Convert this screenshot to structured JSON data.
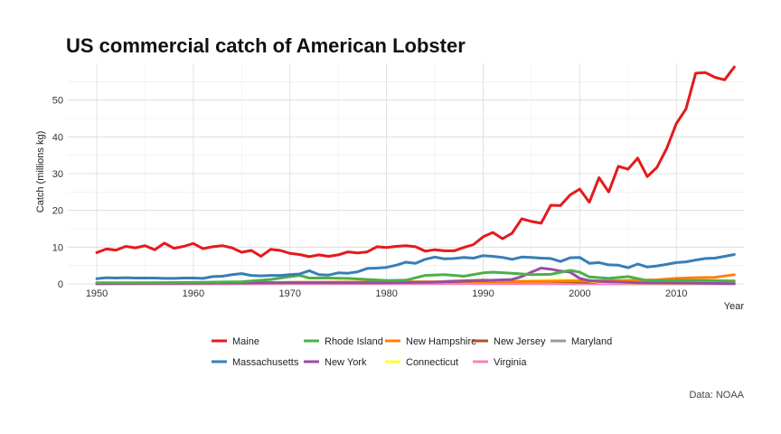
{
  "chart_data": {
    "type": "line",
    "title": "US commercial catch of American Lobster",
    "xlabel": "Year",
    "ylabel": "Catch (millions kg)",
    "caption": "Data: NOAA",
    "xlim": [
      1947,
      2017
    ],
    "ylim": [
      0,
      60
    ],
    "x_ticks": [
      1950,
      1960,
      1970,
      1980,
      1990,
      2000,
      2010
    ],
    "y_ticks": [
      0,
      10,
      20,
      30,
      40,
      50
    ],
    "grid": true,
    "legend_position": "bottom",
    "series": [
      {
        "name": "Maine",
        "color": "#e41a1c",
        "x": [
          1950,
          1951,
          1952,
          1953,
          1954,
          1955,
          1956,
          1957,
          1958,
          1959,
          1960,
          1961,
          1962,
          1963,
          1964,
          1965,
          1966,
          1967,
          1968,
          1969,
          1970,
          1971,
          1972,
          1973,
          1974,
          1975,
          1976,
          1977,
          1978,
          1979,
          1980,
          1981,
          1982,
          1983,
          1984,
          1985,
          1986,
          1987,
          1988,
          1989,
          1990,
          1991,
          1992,
          1993,
          1994,
          1995,
          1996,
          1997,
          1998,
          1999,
          2000,
          2001,
          2002,
          2003,
          2004,
          2005,
          2006,
          2007,
          2008,
          2009,
          2010,
          2011,
          2012,
          2013,
          2014,
          2015,
          2016
        ],
        "values": [
          8.5,
          9.5,
          9.2,
          10.2,
          9.8,
          10.4,
          9.3,
          11.1,
          9.7,
          10.2,
          11.0,
          9.6,
          10.1,
          10.4,
          9.8,
          8.6,
          9.1,
          7.5,
          9.4,
          9.1,
          8.3,
          8.0,
          7.4,
          7.9,
          7.5,
          7.9,
          8.7,
          8.4,
          8.7,
          10.1,
          9.9,
          10.2,
          10.4,
          10.1,
          8.9,
          9.3,
          9.0,
          9.0,
          9.9,
          10.7,
          12.8,
          14.0,
          12.3,
          13.8,
          17.7,
          17.0,
          16.5,
          21.4,
          21.3,
          24.2,
          25.8,
          22.2,
          28.9,
          25.0,
          32.0,
          31.2,
          34.2,
          29.2,
          31.7,
          36.8,
          43.6,
          47.6,
          57.3,
          57.5,
          56.2,
          55.5,
          59.0
        ]
      },
      {
        "name": "Massachusetts",
        "color": "#377eb8",
        "x": [
          1950,
          1951,
          1952,
          1953,
          1954,
          1955,
          1956,
          1957,
          1958,
          1959,
          1960,
          1961,
          1962,
          1963,
          1964,
          1965,
          1966,
          1967,
          1968,
          1969,
          1970,
          1971,
          1972,
          1973,
          1974,
          1975,
          1976,
          1977,
          1978,
          1979,
          1980,
          1981,
          1982,
          1983,
          1984,
          1985,
          1986,
          1987,
          1988,
          1989,
          1990,
          1991,
          1992,
          1993,
          1994,
          1995,
          1996,
          1997,
          1998,
          1999,
          2000,
          2001,
          2002,
          2003,
          2004,
          2005,
          2006,
          2007,
          2008,
          2009,
          2010,
          2011,
          2012,
          2013,
          2014,
          2015,
          2016
        ],
        "values": [
          1.4,
          1.7,
          1.6,
          1.7,
          1.6,
          1.6,
          1.6,
          1.5,
          1.5,
          1.6,
          1.6,
          1.5,
          2.0,
          2.1,
          2.5,
          2.8,
          2.3,
          2.2,
          2.3,
          2.3,
          2.5,
          2.7,
          3.6,
          2.5,
          2.4,
          3.0,
          2.9,
          3.3,
          4.2,
          4.3,
          4.5,
          5.1,
          5.9,
          5.6,
          6.7,
          7.3,
          6.8,
          6.9,
          7.2,
          7.0,
          7.7,
          7.5,
          7.2,
          6.7,
          7.3,
          7.2,
          7.0,
          6.9,
          6.1,
          7.1,
          7.2,
          5.6,
          5.8,
          5.2,
          5.1,
          4.4,
          5.4,
          4.6,
          4.9,
          5.3,
          5.8,
          6.0,
          6.5,
          6.9,
          7.0,
          7.5,
          8.0
        ]
      },
      {
        "name": "Rhode Island",
        "color": "#4daf4a",
        "x": [
          1950,
          1955,
          1960,
          1965,
          1968,
          1970,
          1971,
          1972,
          1974,
          1976,
          1978,
          1980,
          1982,
          1984,
          1986,
          1988,
          1990,
          1991,
          1993,
          1995,
          1997,
          1999,
          2000,
          2001,
          2003,
          2005,
          2007,
          2010,
          2013,
          2016
        ],
        "values": [
          0.3,
          0.3,
          0.4,
          0.6,
          1.2,
          2.0,
          2.3,
          1.6,
          1.6,
          1.5,
          1.2,
          0.9,
          1.0,
          2.3,
          2.5,
          2.1,
          3.0,
          3.2,
          2.9,
          2.5,
          2.6,
          3.7,
          3.2,
          1.9,
          1.5,
          2.0,
          0.9,
          0.9,
          0.9,
          0.8
        ]
      },
      {
        "name": "New York",
        "color": "#984ea3",
        "x": [
          1950,
          1960,
          1970,
          1980,
          1985,
          1990,
          1993,
          1994,
          1995,
          1996,
          1997,
          1998,
          1999,
          2000,
          2001,
          2002,
          2004,
          2006,
          2010,
          2016
        ],
        "values": [
          0.1,
          0.2,
          0.3,
          0.3,
          0.5,
          0.9,
          1.2,
          2.0,
          3.2,
          4.3,
          4.0,
          3.5,
          3.2,
          1.5,
          0.9,
          0.7,
          0.5,
          0.3,
          0.2,
          0.1
        ]
      },
      {
        "name": "New Hampshire",
        "color": "#ff7f00",
        "x": [
          1950,
          1960,
          1970,
          1980,
          1990,
          1995,
          2000,
          2005,
          2008,
          2010,
          2012,
          2014,
          2016
        ],
        "values": [
          0.2,
          0.3,
          0.4,
          0.5,
          0.6,
          0.7,
          0.8,
          0.9,
          1.1,
          1.5,
          1.7,
          1.8,
          2.5
        ]
      },
      {
        "name": "Connecticut",
        "color": "#ffff33",
        "x": [
          1950,
          1960,
          1970,
          1980,
          1985,
          1990,
          1995,
          1998,
          2000,
          2002,
          2005,
          2010,
          2016
        ],
        "values": [
          0.2,
          0.2,
          0.3,
          0.4,
          0.6,
          0.6,
          0.9,
          1.1,
          1.0,
          0.5,
          0.3,
          0.1,
          0.1
        ]
      },
      {
        "name": "New Jersey",
        "color": "#a65628",
        "x": [
          1950,
          1960,
          1965,
          1970,
          1980,
          1985,
          1990,
          1995,
          2000,
          2005,
          2010,
          2016
        ],
        "values": [
          0.1,
          0.2,
          0.3,
          0.4,
          0.5,
          0.6,
          1.0,
          0.8,
          0.5,
          0.4,
          0.2,
          0.1
        ]
      },
      {
        "name": "Virginia",
        "color": "#f781bf",
        "x": [
          1950,
          1970,
          1990,
          2016
        ],
        "values": [
          0.0,
          0.1,
          0.1,
          0.0
        ]
      },
      {
        "name": "Maryland",
        "color": "#999999",
        "x": [
          1950,
          1970,
          1990,
          2016
        ],
        "values": [
          0.0,
          0.1,
          0.1,
          0.0
        ]
      }
    ]
  }
}
